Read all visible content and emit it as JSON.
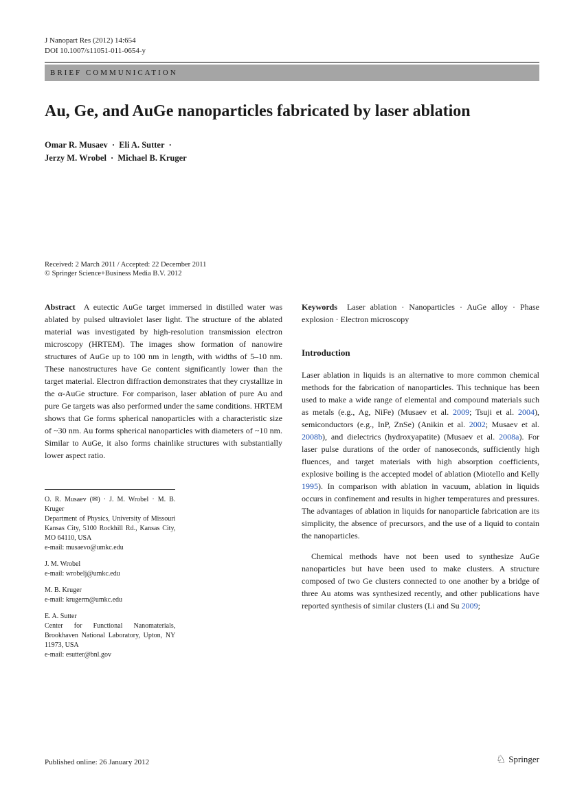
{
  "header": {
    "journal_ref": "J Nanopart Res (2012) 14:654",
    "doi": "DOI 10.1007/s11051-011-0654-y",
    "article_type": "BRIEF COMMUNICATION"
  },
  "title": "Au, Ge, and AuGe nanoparticles fabricated by laser ablation",
  "authors": {
    "a1": "Omar R. Musaev",
    "a2": "Eli A. Sutter",
    "a3": "Jerzy M. Wrobel",
    "a4": "Michael B. Kruger"
  },
  "dates": {
    "received_accepted": "Received: 2 March 2011 / Accepted: 22 December 2011",
    "copyright": "© Springer Science+Business Media B.V. 2012"
  },
  "abstract": {
    "label": "Abstract",
    "text": "A eutectic AuGe target immersed in distilled water was ablated by pulsed ultraviolet laser light. The structure of the ablated material was investigated by high-resolution transmission electron microscopy (HRTEM). The images show formation of nanowire structures of AuGe up to 100 nm in length, with widths of 5–10 nm. These nanostructures have Ge content significantly lower than the target material. Electron diffraction demonstrates that they crystallize in the α-AuGe structure. For comparison, laser ablation of pure Au and pure Ge targets was also performed under the same conditions. HRTEM shows that Ge forms spherical nanoparticles with a characteristic size of ~30 nm. Au forms spherical nanoparticles with diameters of ~10 nm. Similar to AuGe, it also forms chainlike structures with substantially lower aspect ratio."
  },
  "keywords": {
    "label": "Keywords",
    "text": "Laser ablation · Nanoparticles · AuGe alloy · Phase explosion · Electron microscopy"
  },
  "intro": {
    "heading": "Introduction",
    "p1a": "Laser ablation in liquids is an alternative to more common chemical methods for the fabrication of nanoparticles. This technique has been used to make a wide range of elemental and compound materials such as metals (e.g., Ag, NiFe) (Musaev et al. ",
    "c1": "2009",
    "p1b": "; Tsuji et al. ",
    "c2": "2004",
    "p1c": "), semiconductors (e.g., InP, ZnSe) (Anikin et al. ",
    "c3": "2002",
    "p1d": "; Musaev et al. ",
    "c4": "2008b",
    "p1e": "), and dielectrics (hydroxyapatite) (Musaev et al. ",
    "c5": "2008a",
    "p1f": "). For laser pulse durations of the order of nanoseconds, sufficiently high fluences, and target materials with high absorption coefficients, explosive boiling is the accepted model of ablation (Miotello and Kelly ",
    "c6": "1995",
    "p1g": "). In comparison with ablation in vacuum, ablation in liquids occurs in confinement and results in higher temperatures and pressures. The advantages of ablation in liquids for nanoparticle fabrication are its simplicity, the absence of precursors, and the use of a liquid to contain the nanoparticles.",
    "p2a": "Chemical methods have not been used to synthesize AuGe nanoparticles but have been used to make clusters. A structure composed of two Ge clusters connected to one another by a bridge of three Au atoms was synthesized recently, and other publications have reported synthesis of similar clusters (Li and Su ",
    "c7": "2009",
    "p2b": ";"
  },
  "affiliations": {
    "g1_names": "O. R. Musaev (✉) · J. M. Wrobel · M. B. Kruger",
    "g1_dept": "Department of Physics, University of Missouri Kansas City, 5100 Rockhill Rd., Kansas City, MO 64110, USA",
    "g1_email": "e-mail: musaevo@umkc.edu",
    "g2_name": "J. M. Wrobel",
    "g2_email": "e-mail: wrobelj@umkc.edu",
    "g3_name": "M. B. Kruger",
    "g3_email": "e-mail: krugerm@umkc.edu",
    "g4_name": "E. A. Sutter",
    "g4_dept": "Center for Functional Nanomaterials, Brookhaven National Laboratory, Upton, NY 11973, USA",
    "g4_email": "e-mail: esutter@bnl.gov"
  },
  "footer": {
    "pub_online": "Published online: 26 January 2012",
    "publisher": "Springer"
  }
}
